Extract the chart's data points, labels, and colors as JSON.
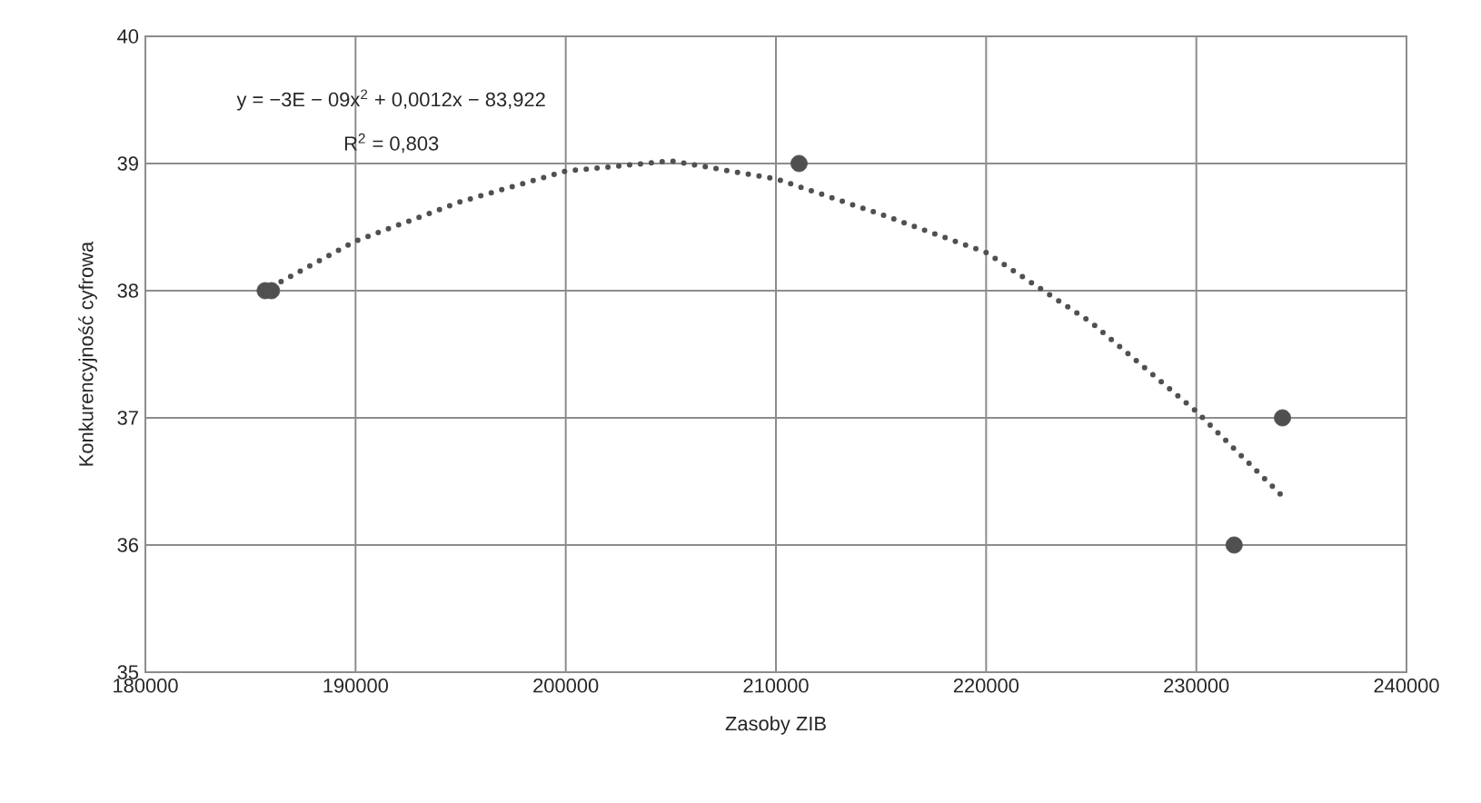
{
  "chart_data": {
    "type": "scatter",
    "xlabel": "Zasoby ZIB",
    "ylabel": "Konkurencyjność cyfrowa",
    "annotations": [
      "y = −3E − 09x$^{2}$ + 0,0012x − 83,922",
      "R$^{2}$ = 0,803"
    ],
    "series": [
      {
        "color": "#505050",
        "marker": "circle",
        "x": [
          185700,
          186000,
          211100,
          231800,
          234100
        ],
        "values": [
          38,
          38,
          39,
          36,
          37
        ]
      },
      {
        "type": "line",
        "color": "#505050",
        "marker": "none",
        "line_style": "dotted",
        "x": [
          186000,
          190000,
          195000,
          200000,
          205000,
          210000,
          215000,
          220000,
          225000,
          230000,
          234000
        ],
        "values": [
          38.03,
          38.39,
          38.7,
          38.94,
          39.02,
          38.88,
          38.6,
          38.3,
          37.75,
          37.05,
          36.4
        ]
      }
    ],
    "xlim": [
      180000,
      240000
    ],
    "xticks": [
      180000,
      190000,
      200000,
      210000,
      220000,
      230000,
      240000
    ],
    "ylim": [
      35,
      40
    ],
    "yticks": [
      35,
      36,
      37,
      38,
      39,
      40
    ],
    "grid": true
  }
}
